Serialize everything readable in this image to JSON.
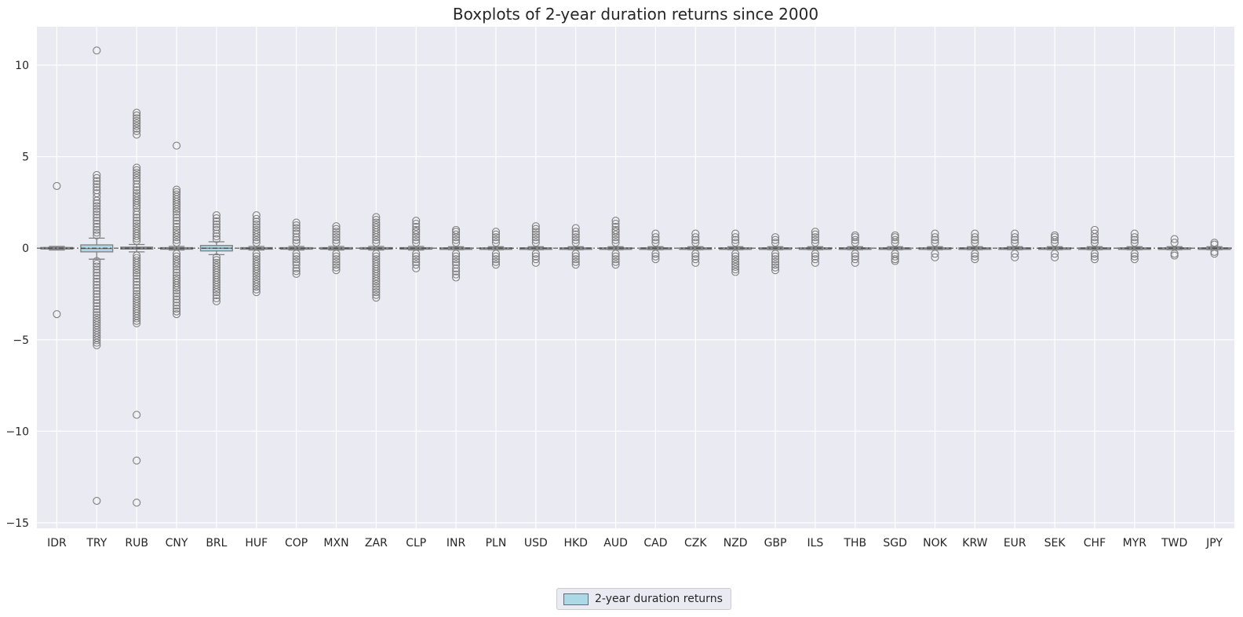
{
  "chart_data": {
    "type": "box",
    "title": "Boxplots of 2-year duration returns since 2000",
    "xlabel": "",
    "ylabel": "",
    "ylim": [
      -15.3,
      12.1
    ],
    "yticks": [
      -15,
      -10,
      -5,
      0,
      5,
      10
    ],
    "grid": true,
    "legend": {
      "placement": "bottom-center",
      "entries": [
        "2-year duration returns"
      ]
    },
    "colors": {
      "box_fill": "#add8e6",
      "line": "#7f7f7f",
      "background": "#eaeaf2",
      "grid": "#ffffff"
    },
    "categories": [
      "IDR",
      "TRY",
      "RUB",
      "CNY",
      "BRL",
      "HUF",
      "COP",
      "MXN",
      "ZAR",
      "CLP",
      "INR",
      "PLN",
      "USD",
      "HKD",
      "AUD",
      "CAD",
      "CZK",
      "NZD",
      "GBP",
      "ILS",
      "THB",
      "SGD",
      "NOK",
      "KRW",
      "EUR",
      "SEK",
      "CHF",
      "MYR",
      "TWD",
      "JPY"
    ],
    "series": [
      {
        "name": "2-year duration returns",
        "boxes": [
          {
            "q1": -0.04,
            "median": 0.0,
            "q3": 0.04,
            "whislo": -0.1,
            "whishi": 0.1,
            "fliers_hi": [
              3.4
            ],
            "fliers_lo": [
              -3.6
            ]
          },
          {
            "q1": -0.2,
            "median": -0.02,
            "q3": 0.18,
            "whislo": -0.6,
            "whishi": 0.55,
            "fliers_hi": [
              0.7,
              1.0,
              1.5,
              2.0,
              2.3,
              2.6,
              2.8,
              3.0,
              3.5,
              4.0,
              10.8
            ],
            "fliers_lo": [
              -0.7,
              -1.0,
              -1.5,
              -2.0,
              -2.5,
              -3.0,
              -3.5,
              -3.8,
              -5.3,
              -13.8
            ]
          },
          {
            "q1": -0.05,
            "median": 0.0,
            "q3": 0.06,
            "whislo": -0.2,
            "whishi": 0.2,
            "fliers_hi": [
              0.4,
              0.8,
              1.2,
              1.5,
              2.0,
              2.2,
              3.0,
              3.5,
              3.7,
              4.4,
              6.2,
              6.4,
              7.1,
              7.4
            ],
            "fliers_lo": [
              -0.4,
              -0.8,
              -1.2,
              -1.5,
              -2.0,
              -2.5,
              -3.7,
              -4.1,
              -9.1,
              -11.6,
              -13.9
            ]
          },
          {
            "q1": -0.03,
            "median": 0.0,
            "q3": 0.03,
            "whislo": -0.1,
            "whishi": 0.1,
            "fliers_hi": [
              0.3,
              0.6,
              1.0,
              1.5,
              2.0,
              2.4,
              3.2,
              5.6
            ],
            "fliers_lo": [
              -0.3,
              -0.6,
              -1.0,
              -1.5,
              -1.9,
              -2.3,
              -2.8,
              -3.3,
              -3.6
            ]
          },
          {
            "q1": -0.15,
            "median": 0.0,
            "q3": 0.15,
            "whislo": -0.35,
            "whishi": 0.35,
            "fliers_hi": [
              0.5,
              0.8,
              1.0,
              1.3,
              1.8
            ],
            "fliers_lo": [
              -0.5,
              -0.8,
              -1.2,
              -1.6,
              -2.0,
              -2.4,
              -2.9
            ]
          },
          {
            "q1": -0.03,
            "median": 0.0,
            "q3": 0.03,
            "whislo": -0.1,
            "whishi": 0.1,
            "fliers_hi": [
              0.3,
              0.6,
              1.0,
              1.3,
              1.6,
              1.8
            ],
            "fliers_lo": [
              -0.3,
              -0.6,
              -1.0,
              -1.4,
              -1.7,
              -2.1,
              -2.4
            ]
          },
          {
            "q1": -0.03,
            "median": 0.0,
            "q3": 0.03,
            "whislo": -0.1,
            "whishi": 0.1,
            "fliers_hi": [
              0.3,
              0.6,
              0.8,
              1.4
            ],
            "fliers_lo": [
              -0.3,
              -0.6,
              -0.9,
              -1.1,
              -1.4
            ]
          },
          {
            "q1": -0.03,
            "median": 0.0,
            "q3": 0.03,
            "whislo": -0.1,
            "whishi": 0.1,
            "fliers_hi": [
              0.3,
              0.6,
              0.9,
              1.2
            ],
            "fliers_lo": [
              -0.3,
              -0.6,
              -0.9,
              -1.2
            ]
          },
          {
            "q1": -0.03,
            "median": 0.0,
            "q3": 0.03,
            "whislo": -0.1,
            "whishi": 0.1,
            "fliers_hi": [
              0.3,
              0.6,
              1.0,
              1.4,
              1.7
            ],
            "fliers_lo": [
              -0.3,
              -0.6,
              -1.0,
              -1.4,
              -1.8,
              -2.7
            ]
          },
          {
            "q1": -0.03,
            "median": 0.0,
            "q3": 0.03,
            "whislo": -0.1,
            "whishi": 0.1,
            "fliers_hi": [
              0.3,
              0.6,
              0.9,
              1.0,
              1.5
            ],
            "fliers_lo": [
              -0.3,
              -0.6,
              -0.9,
              -1.1
            ]
          },
          {
            "q1": -0.02,
            "median": 0.0,
            "q3": 0.02,
            "whislo": -0.08,
            "whishi": 0.08,
            "fliers_hi": [
              0.3,
              0.6,
              0.9,
              1.0
            ],
            "fliers_lo": [
              -0.3,
              -0.6,
              -0.9,
              -1.1,
              -1.6
            ]
          },
          {
            "q1": -0.02,
            "median": 0.0,
            "q3": 0.02,
            "whislo": -0.08,
            "whishi": 0.08,
            "fliers_hi": [
              0.3,
              0.6,
              0.9
            ],
            "fliers_lo": [
              -0.3,
              -0.6,
              -0.9
            ]
          },
          {
            "q1": -0.02,
            "median": 0.0,
            "q3": 0.02,
            "whislo": -0.08,
            "whishi": 0.08,
            "fliers_hi": [
              0.3,
              0.6,
              1.2
            ],
            "fliers_lo": [
              -0.3,
              -0.6,
              -0.8
            ]
          },
          {
            "q1": -0.02,
            "median": 0.0,
            "q3": 0.02,
            "whislo": -0.08,
            "whishi": 0.08,
            "fliers_hi": [
              0.3,
              0.6,
              0.9,
              1.1
            ],
            "fliers_lo": [
              -0.3,
              -0.6,
              -0.9
            ]
          },
          {
            "q1": -0.02,
            "median": 0.0,
            "q3": 0.02,
            "whislo": -0.08,
            "whishi": 0.08,
            "fliers_hi": [
              0.3,
              0.6,
              0.9,
              1.0,
              1.5
            ],
            "fliers_lo": [
              -0.3,
              -0.6,
              -0.9
            ]
          },
          {
            "q1": -0.02,
            "median": 0.0,
            "q3": 0.02,
            "whislo": -0.08,
            "whishi": 0.08,
            "fliers_hi": [
              0.3,
              0.6,
              0.8
            ],
            "fliers_lo": [
              -0.3,
              -0.6
            ]
          },
          {
            "q1": -0.02,
            "median": 0.0,
            "q3": 0.02,
            "whislo": -0.08,
            "whishi": 0.08,
            "fliers_hi": [
              0.3,
              0.6,
              0.8
            ],
            "fliers_lo": [
              -0.3,
              -0.6,
              -0.8
            ]
          },
          {
            "q1": -0.02,
            "median": 0.0,
            "q3": 0.02,
            "whislo": -0.08,
            "whishi": 0.08,
            "fliers_hi": [
              0.3,
              0.6,
              0.8
            ],
            "fliers_lo": [
              -0.3,
              -0.6,
              -1.3
            ]
          },
          {
            "q1": -0.02,
            "median": 0.0,
            "q3": 0.02,
            "whislo": -0.08,
            "whishi": 0.08,
            "fliers_hi": [
              0.3,
              0.6
            ],
            "fliers_lo": [
              -0.3,
              -0.6,
              -0.9,
              -1.2
            ]
          },
          {
            "q1": -0.02,
            "median": 0.0,
            "q3": 0.02,
            "whislo": -0.08,
            "whishi": 0.08,
            "fliers_hi": [
              0.3,
              0.6,
              0.9
            ],
            "fliers_lo": [
              -0.3,
              -0.6,
              -0.8
            ]
          },
          {
            "q1": -0.02,
            "median": 0.0,
            "q3": 0.02,
            "whislo": -0.08,
            "whishi": 0.08,
            "fliers_hi": [
              0.3,
              0.6,
              0.7
            ],
            "fliers_lo": [
              -0.3,
              -0.6,
              -0.8
            ]
          },
          {
            "q1": -0.02,
            "median": 0.0,
            "q3": 0.02,
            "whislo": -0.08,
            "whishi": 0.08,
            "fliers_hi": [
              0.3,
              0.6,
              0.7
            ],
            "fliers_lo": [
              -0.3,
              -0.6,
              -0.7
            ]
          },
          {
            "q1": -0.02,
            "median": 0.0,
            "q3": 0.02,
            "whislo": -0.08,
            "whishi": 0.08,
            "fliers_hi": [
              0.3,
              0.6,
              0.8
            ],
            "fliers_lo": [
              -0.3,
              -0.5
            ]
          },
          {
            "q1": -0.02,
            "median": 0.0,
            "q3": 0.02,
            "whislo": -0.08,
            "whishi": 0.08,
            "fliers_hi": [
              0.3,
              0.6,
              0.8
            ],
            "fliers_lo": [
              -0.3,
              -0.6
            ]
          },
          {
            "q1": -0.02,
            "median": 0.0,
            "q3": 0.02,
            "whislo": -0.08,
            "whishi": 0.08,
            "fliers_hi": [
              0.3,
              0.6,
              0.8
            ],
            "fliers_lo": [
              -0.3,
              -0.5
            ]
          },
          {
            "q1": -0.02,
            "median": 0.0,
            "q3": 0.02,
            "whislo": -0.08,
            "whishi": 0.08,
            "fliers_hi": [
              0.3,
              0.6,
              0.7
            ],
            "fliers_lo": [
              -0.3,
              -0.5
            ]
          },
          {
            "q1": -0.02,
            "median": 0.0,
            "q3": 0.02,
            "whislo": -0.08,
            "whishi": 0.08,
            "fliers_hi": [
              0.3,
              0.6,
              0.8,
              1.0
            ],
            "fliers_lo": [
              -0.3,
              -0.6
            ]
          },
          {
            "q1": -0.02,
            "median": 0.0,
            "q3": 0.02,
            "whislo": -0.08,
            "whishi": 0.08,
            "fliers_hi": [
              0.3,
              0.6,
              0.8
            ],
            "fliers_lo": [
              -0.3,
              -0.6
            ]
          },
          {
            "q1": -0.02,
            "median": 0.0,
            "q3": 0.02,
            "whislo": -0.08,
            "whishi": 0.08,
            "fliers_hi": [
              0.3,
              0.5
            ],
            "fliers_lo": [
              -0.3,
              -0.4
            ]
          },
          {
            "q1": -0.02,
            "median": 0.0,
            "q3": 0.02,
            "whislo": -0.08,
            "whishi": 0.08,
            "fliers_hi": [
              0.2,
              0.3
            ],
            "fliers_lo": [
              -0.2,
              -0.3
            ]
          }
        ]
      }
    ]
  }
}
